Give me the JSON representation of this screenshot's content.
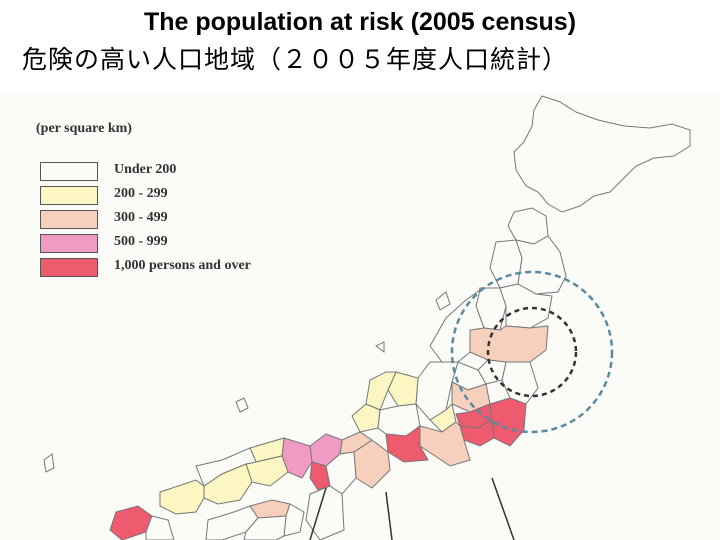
{
  "title": {
    "english": "The population at risk (2005 census)",
    "japanese": "危険の高い人口地域（２００５年度人口統計）"
  },
  "legend": {
    "unit": "(per square km)",
    "items": [
      {
        "label": "Under 200",
        "color": "#fbfbf8"
      },
      {
        "label": "200 - 299",
        "color": "#fbf6c2"
      },
      {
        "label": "300 - 499",
        "color": "#f6cfbd"
      },
      {
        "label": "500 - 999",
        "color": "#ef9bc4"
      },
      {
        "label": "1,000 persons and over",
        "color": "#ee5a6e"
      }
    ]
  },
  "colors": {
    "border": "#777777",
    "circle_outer": "#5a8aa0",
    "circle_inner": "#333333"
  }
}
